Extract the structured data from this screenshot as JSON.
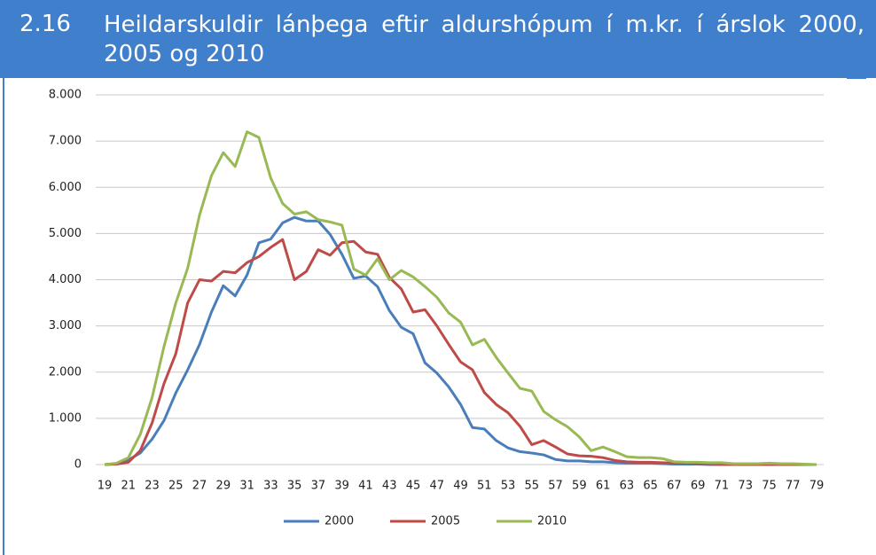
{
  "header": {
    "number": "2.16"
  },
  "chart_data": {
    "type": "line",
    "title": "Heildarskuldir lánþega eftir aldurshópum í m.kr. í árslok 2000, 2005 og 2010",
    "categories": [
      "19",
      null,
      "21",
      null,
      "23",
      null,
      "25",
      null,
      "27",
      null,
      "29",
      null,
      "31",
      null,
      "33",
      null,
      "35",
      null,
      "37",
      null,
      "39",
      null,
      "41",
      null,
      "43",
      null,
      "45",
      null,
      "47",
      null,
      "49",
      null,
      "51",
      null,
      "53",
      null,
      "55",
      null,
      "57",
      null,
      "59",
      null,
      "61",
      null,
      "63",
      null,
      "65",
      null,
      "67",
      null,
      "69",
      null,
      "71",
      null,
      "73",
      null,
      "75",
      null,
      "77",
      null,
      "79"
    ],
    "ylim": [
      0,
      8000
    ],
    "yticks": [
      0,
      {
        "value": 1000,
        "label": "1.000"
      },
      {
        "value": 2000,
        "label": "2.000"
      },
      {
        "value": 3000,
        "label": "3.000"
      },
      {
        "value": 4000,
        "label": "4.000"
      },
      {
        "value": 5000,
        "label": "5.000"
      },
      {
        "value": 6000,
        "label": "6.000"
      },
      {
        "value": 7000,
        "label": "7.000"
      },
      {
        "value": 8000,
        "label": "8.000"
      }
    ],
    "grid": true,
    "legend": "bottom",
    "series": [
      {
        "name": "2000",
        "color": "#4a7ebb",
        "values": [
          0,
          20,
          100,
          250,
          550,
          950,
          1550,
          2050,
          2600,
          3300,
          3870,
          3650,
          4100,
          4800,
          4880,
          5230,
          5350,
          5270,
          5270,
          4980,
          4550,
          4030,
          4080,
          3850,
          3330,
          2970,
          2830,
          2200,
          1980,
          1680,
          1300,
          800,
          770,
          520,
          360,
          280,
          250,
          210,
          110,
          80,
          80,
          60,
          60,
          40,
          30,
          30,
          30,
          20,
          10,
          10,
          10,
          0,
          0,
          0,
          0,
          0,
          0,
          0,
          0,
          0,
          0
        ]
      },
      {
        "name": "2005",
        "color": "#be4b48",
        "values": [
          0,
          10,
          50,
          300,
          900,
          1750,
          2400,
          3500,
          4000,
          3970,
          4180,
          4150,
          4370,
          4500,
          4700,
          4870,
          4000,
          4180,
          4650,
          4530,
          4800,
          4830,
          4600,
          4550,
          4050,
          3800,
          3300,
          3350,
          3000,
          2600,
          2220,
          2050,
          1560,
          1300,
          1120,
          830,
          430,
          520,
          380,
          230,
          190,
          180,
          150,
          90,
          60,
          50,
          50,
          40,
          30,
          30,
          20,
          20,
          10,
          10,
          0,
          0,
          0,
          0,
          0,
          0,
          0
        ]
      },
      {
        "name": "2010",
        "color": "#98b954",
        "values": [
          0,
          30,
          150,
          650,
          1450,
          2550,
          3500,
          4250,
          5400,
          6250,
          6750,
          6450,
          7200,
          7080,
          6200,
          5650,
          5420,
          5470,
          5300,
          5250,
          5180,
          4230,
          4100,
          4450,
          4000,
          4200,
          4060,
          3850,
          3620,
          3280,
          3080,
          2590,
          2710,
          2320,
          1980,
          1650,
          1590,
          1150,
          970,
          820,
          600,
          300,
          380,
          280,
          170,
          150,
          150,
          130,
          60,
          50,
          50,
          40,
          40,
          20,
          20,
          20,
          30,
          20,
          20,
          10,
          0
        ]
      }
    ]
  }
}
